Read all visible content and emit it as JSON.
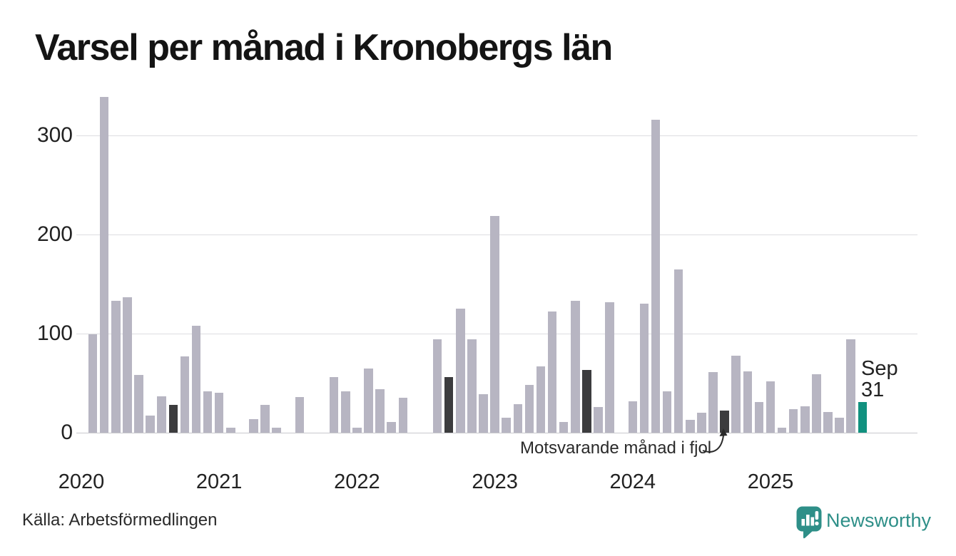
{
  "title": "Varsel per månad i Kronobergs län",
  "source": "Källa: Arbetsförmedlingen",
  "brand": {
    "name": "Newsworthy"
  },
  "annotations": {
    "prior_year": "Motsvarande månad i fjol",
    "latest": {
      "line1": "Sep",
      "line2": "31"
    }
  },
  "colors": {
    "bar": "#b7b5c2",
    "dark": "#3c3c3e",
    "accent": "#11917f",
    "brand": "#2e8f88",
    "grid": "#dddde1",
    "baseline": "#c9c9cd",
    "axis_text": "#222222"
  },
  "chart_data": {
    "type": "bar",
    "title": "Varsel per månad i Kronobergs län",
    "xlabel": "",
    "ylabel": "",
    "ylim": [
      0,
      350
    ],
    "yticks": [
      0,
      100,
      200,
      300
    ],
    "xticks": [
      "2020",
      "2021",
      "2022",
      "2023",
      "2024",
      "2025"
    ],
    "grid": "horizontal",
    "legend": "none",
    "categories": [
      "2020-01",
      "2020-02",
      "2020-03",
      "2020-04",
      "2020-05",
      "2020-06",
      "2020-07",
      "2020-08",
      "2020-09",
      "2020-10",
      "2020-11",
      "2020-12",
      "2021-01",
      "2021-02",
      "2021-03",
      "2021-04",
      "2021-05",
      "2021-06",
      "2021-07",
      "2021-08",
      "2021-09",
      "2021-10",
      "2021-11",
      "2021-12",
      "2022-01",
      "2022-02",
      "2022-03",
      "2022-04",
      "2022-05",
      "2022-06",
      "2022-07",
      "2022-08",
      "2022-09",
      "2022-10",
      "2022-11",
      "2022-12",
      "2023-01",
      "2023-02",
      "2023-03",
      "2023-04",
      "2023-05",
      "2023-06",
      "2023-07",
      "2023-08",
      "2023-09",
      "2023-10",
      "2023-11",
      "2023-12",
      "2024-01",
      "2024-02",
      "2024-03",
      "2024-04",
      "2024-05",
      "2024-06",
      "2024-07",
      "2024-08",
      "2024-09",
      "2024-10",
      "2024-11",
      "2024-12",
      "2025-01",
      "2025-02",
      "2025-03",
      "2025-04",
      "2025-05",
      "2025-06",
      "2025-07",
      "2025-08",
      "2025-09"
    ],
    "values": [
      0,
      99,
      339,
      133,
      137,
      58,
      17,
      37,
      28,
      77,
      108,
      42,
      40,
      5,
      0,
      14,
      28,
      5,
      0,
      36,
      0,
      0,
      56,
      42,
      5,
      65,
      44,
      11,
      35,
      0,
      0,
      94,
      56,
      125,
      94,
      39,
      219,
      15,
      29,
      48,
      67,
      122,
      11,
      133,
      63,
      26,
      132,
      0,
      32,
      130,
      316,
      42,
      165,
      13,
      20,
      61,
      22,
      78,
      62,
      31,
      52,
      5,
      24,
      27,
      59,
      21,
      15,
      94,
      31
    ],
    "dark_months": [
      "2020-09",
      "2021-09",
      "2022-09",
      "2023-09",
      "2024-09"
    ],
    "accent_month": "2025-09",
    "accent_value_label": "Sep 31"
  }
}
